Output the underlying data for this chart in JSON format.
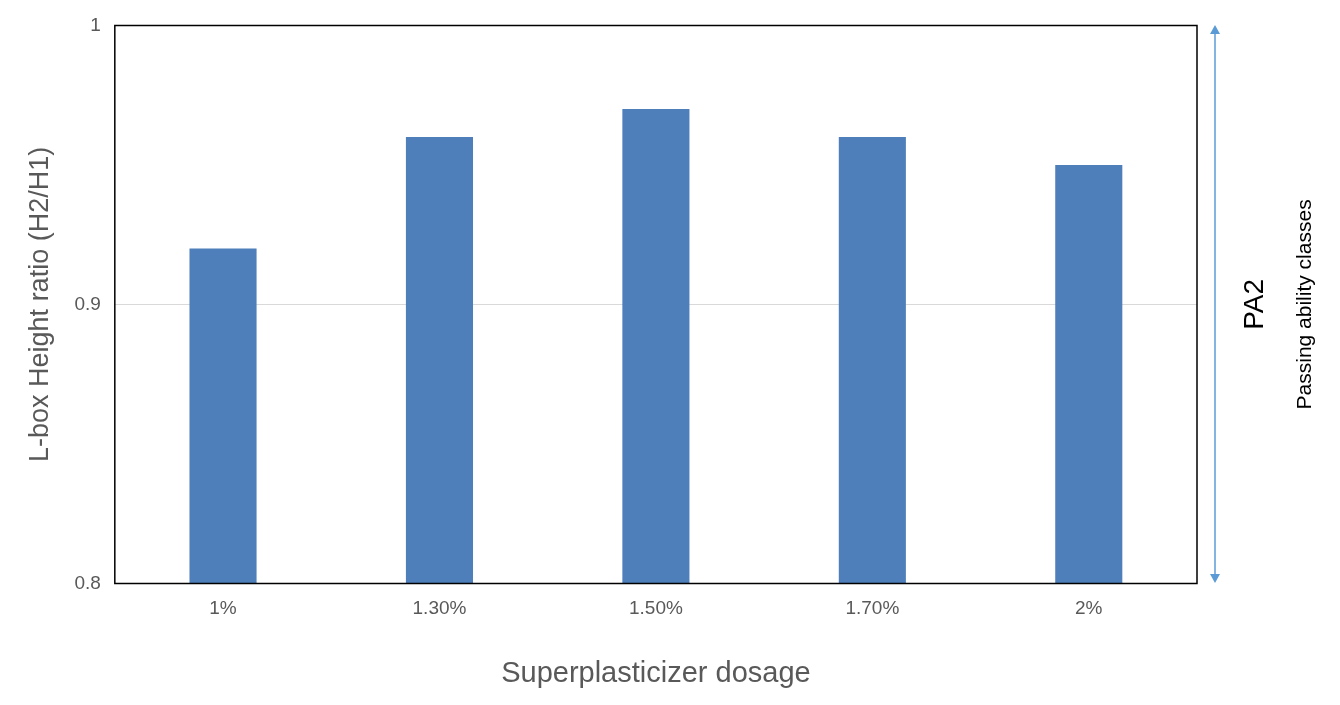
{
  "chart_data": {
    "type": "bar",
    "xlabel": "Superplasticizer dosage",
    "ylabel": "L-box Height ratio (H2/H1)",
    "y2label": "Passing ability classes",
    "annotations": [
      "PA2"
    ],
    "categories": [
      "1%",
      "1.30%",
      "1.50%",
      "1.70%",
      "2%"
    ],
    "values": [
      0.92,
      0.96,
      0.97,
      0.96,
      0.95
    ],
    "color": "#4f7fbb",
    "ylim": [
      0.8,
      1
    ],
    "yticks": [
      {
        "value": 0.8,
        "label": "0.8"
      },
      {
        "value": 0.9,
        "label": "0.9"
      },
      {
        "value": 1,
        "label": "1"
      }
    ],
    "grid": "y",
    "legend": false
  }
}
